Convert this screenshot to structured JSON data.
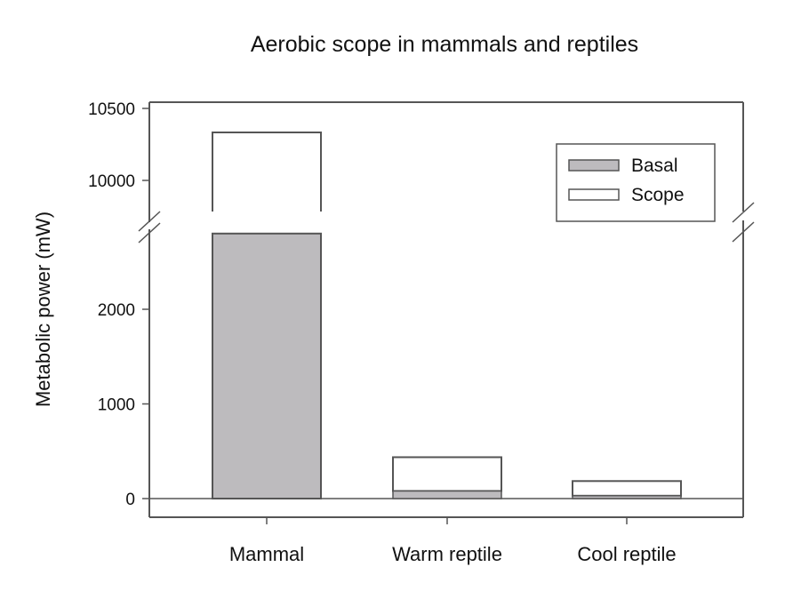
{
  "chart_data": {
    "type": "bar",
    "stacked": true,
    "title": "Aerobic scope in mammals and reptiles",
    "xlabel": "",
    "ylabel": "Metabolic power (mW)",
    "categories": [
      "Mammal",
      "Warm reptile",
      "Cool reptile"
    ],
    "series": [
      {
        "name": "Basal",
        "values": [
          2800,
          80,
          30
        ],
        "color": "#bdbbbe"
      },
      {
        "name": "Scope",
        "values": [
          7533,
          357,
          155
        ],
        "color": "#ffffff"
      }
    ],
    "totals": [
      10333,
      437,
      185
    ],
    "y_axis_break": {
      "lower_range": [
        -200,
        2900
      ],
      "upper_range": [
        9700,
        10500
      ]
    },
    "yticks_lower": [
      0,
      1000,
      2000
    ],
    "yticks_upper": [
      10000,
      10500
    ],
    "grid": false,
    "legend": {
      "position": "top-right",
      "entries": [
        "Basal",
        "Scope"
      ]
    }
  }
}
